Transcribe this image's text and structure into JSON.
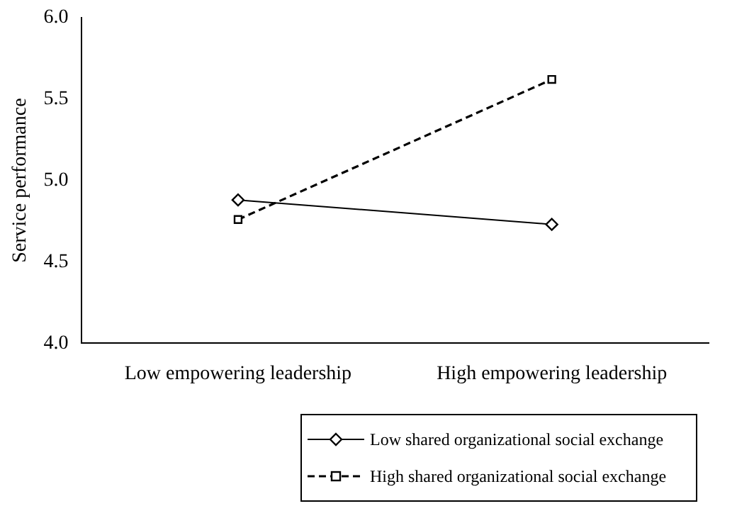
{
  "chart_data": {
    "type": "line",
    "ylabel": "Service performance",
    "categories": [
      "Low empowering leadership",
      "High empowering leadership"
    ],
    "ylim": [
      4.0,
      6.0
    ],
    "yticks": [
      {
        "value": 4.0,
        "label": "4.0"
      },
      {
        "value": 4.5,
        "label": "4.5"
      },
      {
        "value": 5.0,
        "label": "5.0"
      },
      {
        "value": 5.5,
        "label": "5.5"
      },
      {
        "value": 6.0,
        "label": "6.0"
      }
    ],
    "grid": false,
    "legend": "bottom",
    "series": [
      {
        "name": "Low shared organizational social exchange",
        "color": "#000000",
        "values": [
          4.88,
          4.73
        ],
        "marker": "diamond",
        "line_style": "solid"
      },
      {
        "name": "High shared organizational social exchange",
        "color": "#000000",
        "values": [
          4.76,
          5.62
        ],
        "marker": "square",
        "line_style": "dashed"
      }
    ]
  }
}
